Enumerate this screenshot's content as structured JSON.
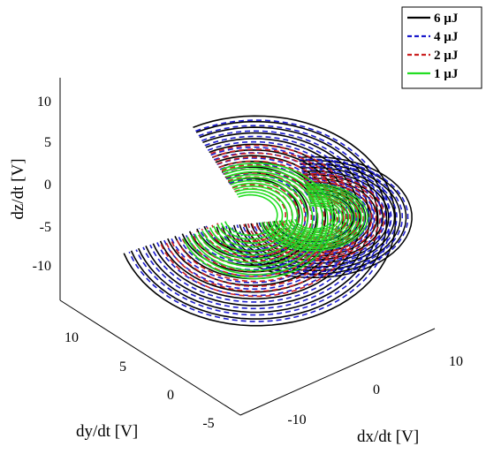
{
  "chart_data": {
    "type": "line",
    "subtype": "3d-phase-trajectory",
    "title": "",
    "xlabel": "dx/dt [V]",
    "ylabel": "dy/dt [V]",
    "zlabel": "dz/dt [V]",
    "xlim": [
      -15,
      15
    ],
    "ylim": [
      -7,
      14
    ],
    "zlim": [
      -14,
      14
    ],
    "xticks": [
      "-10",
      "0",
      "10"
    ],
    "yticks": [
      "-5",
      "0",
      "5",
      "10"
    ],
    "zticks": [
      "-10",
      "-5",
      "0",
      "5",
      "10"
    ],
    "grid": false,
    "legend_position": "top-right",
    "series": [
      {
        "name": "6 µJ",
        "color": "#000000",
        "style": "solid",
        "amplitude": 1.0
      },
      {
        "name": "4 µJ",
        "color": "#1a1acc",
        "style": "dashed",
        "amplitude": 0.96
      },
      {
        "name": "2 µJ",
        "color": "#cc2222",
        "style": "dashed",
        "amplitude": 0.72
      },
      {
        "name": "1 µJ",
        "color": "#22dd22",
        "style": "solid",
        "amplitude": 0.55
      }
    ]
  }
}
